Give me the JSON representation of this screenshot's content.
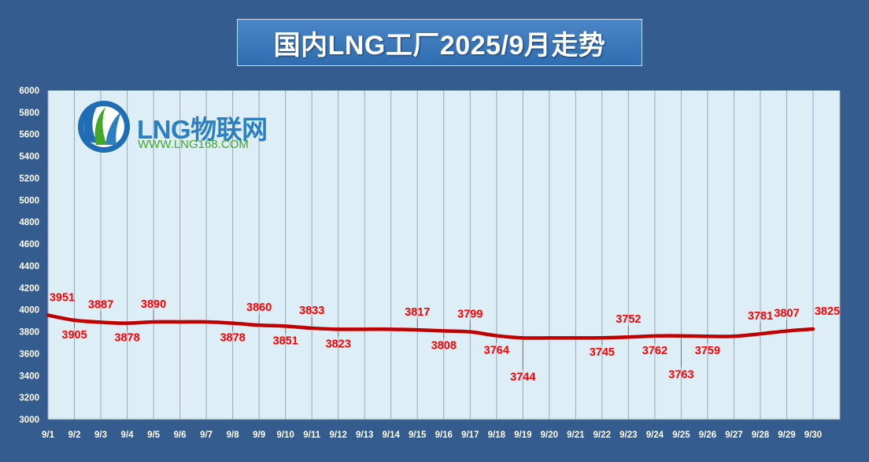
{
  "chart_data": {
    "type": "line",
    "title": "国内LNG工厂2025/9月走势",
    "categories": [
      "9/1",
      "9/2",
      "9/3",
      "9/4",
      "9/5",
      "9/6",
      "9/7",
      "9/8",
      "9/9",
      "9/10",
      "9/11",
      "9/12",
      "9/13",
      "9/14",
      "9/15",
      "9/16",
      "9/17",
      "9/18",
      "9/19",
      "9/20",
      "9/21",
      "9/22",
      "9/23",
      "9/24",
      "9/25",
      "9/26",
      "9/27",
      "9/28",
      "9/29",
      "9/30"
    ],
    "series": [
      {
        "values": [
          3951,
          3905,
          3887,
          3878,
          3890,
          3890,
          3890,
          3878,
          3860,
          3851,
          3833,
          3823,
          3823,
          3823,
          3817,
          3808,
          3799,
          3764,
          3744,
          3744,
          3744,
          3745,
          3752,
          3762,
          3763,
          3759,
          3759,
          3781,
          3807,
          3825
        ]
      }
    ],
    "data_labels": [
      {
        "index": 0,
        "text": "3951",
        "pos": "above"
      },
      {
        "index": 1,
        "text": "3905",
        "pos": "below"
      },
      {
        "index": 2,
        "text": "3887",
        "pos": "above"
      },
      {
        "index": 3,
        "text": "3878",
        "pos": "below"
      },
      {
        "index": 4,
        "text": "3890",
        "pos": "above"
      },
      {
        "index": 7,
        "text": "3878",
        "pos": "below"
      },
      {
        "index": 8,
        "text": "3860",
        "pos": "above"
      },
      {
        "index": 9,
        "text": "3851",
        "pos": "below"
      },
      {
        "index": 10,
        "text": "3833",
        "pos": "above"
      },
      {
        "index": 11,
        "text": "3823",
        "pos": "below"
      },
      {
        "index": 14,
        "text": "3817",
        "pos": "above"
      },
      {
        "index": 15,
        "text": "3808",
        "pos": "below"
      },
      {
        "index": 16,
        "text": "3799",
        "pos": "above"
      },
      {
        "index": 17,
        "text": "3764",
        "pos": "below"
      },
      {
        "index": 18,
        "text": "3744",
        "pos": "below"
      },
      {
        "index": 21,
        "text": "3745",
        "pos": "below"
      },
      {
        "index": 22,
        "text": "3752",
        "pos": "above"
      },
      {
        "index": 23,
        "text": "3762",
        "pos": "below"
      },
      {
        "index": 24,
        "text": "3763",
        "pos": "below"
      },
      {
        "index": 25,
        "text": "3759",
        "pos": "below"
      },
      {
        "index": 27,
        "text": "3781",
        "pos": "above"
      },
      {
        "index": 28,
        "text": "3807",
        "pos": "above"
      },
      {
        "index": 29,
        "text": "3825",
        "pos": "above"
      }
    ],
    "ylim": [
      3000,
      6000
    ],
    "yticks": [
      "3000",
      "3200",
      "3400",
      "3600",
      "3800",
      "4000",
      "4200",
      "4400",
      "4600",
      "4800",
      "5000",
      "5200",
      "5400",
      "5600",
      "5800",
      "6000"
    ],
    "xlabel": "",
    "ylabel": "",
    "grid": "vertical",
    "legend": "none",
    "colors": {
      "line": "#c00000",
      "label": "#ff0000",
      "plot_bg": "#ddeef7",
      "grid": "#9aa9b8",
      "axis_text": "#ffffff"
    }
  },
  "logo": {
    "brand": "LNG物联网",
    "url": "WWW.LNG168.COM"
  }
}
